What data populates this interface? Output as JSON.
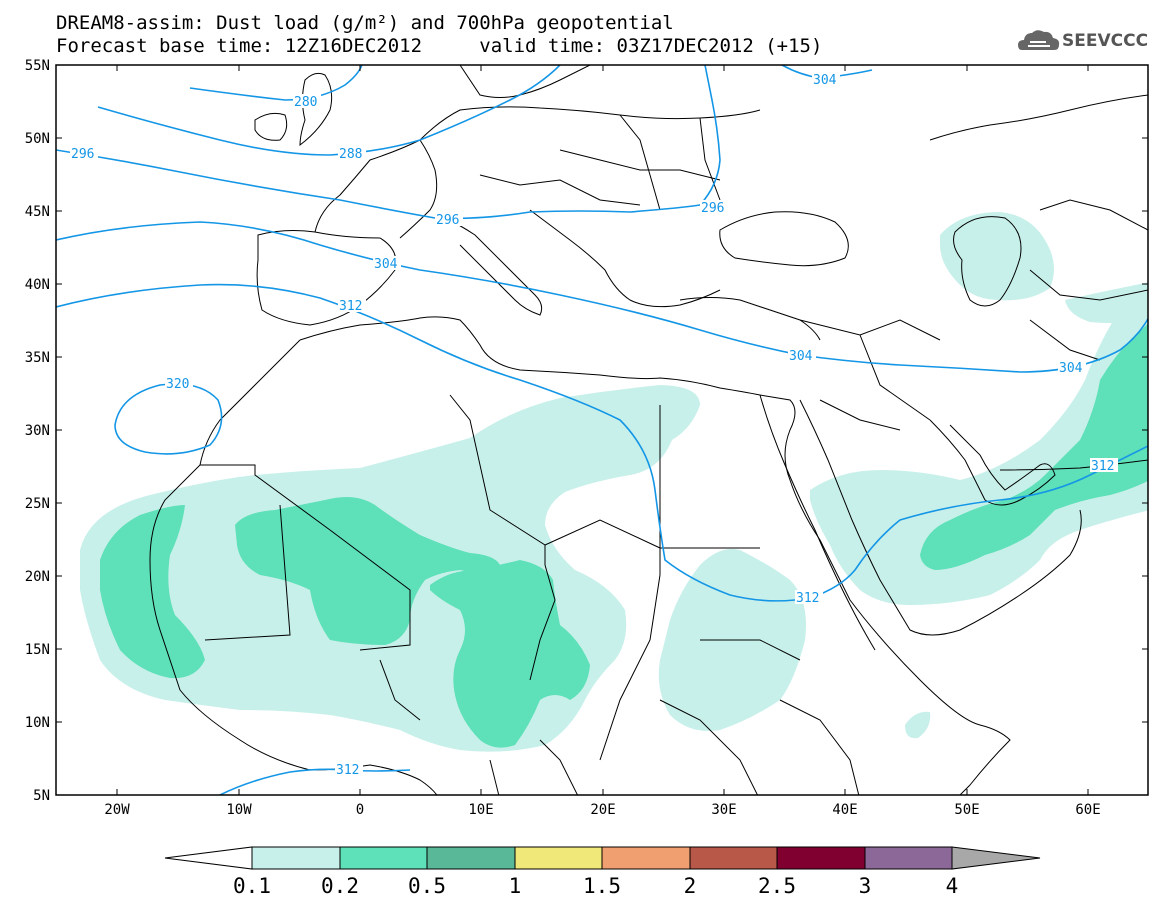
{
  "title": {
    "line1": "DREAM8-assim: Dust load (g/m²) and 700hPa geopotential",
    "line2_left": "Forecast base time: 12Z16DEC2012",
    "line2_right": "valid time: 03Z17DEC2012 (+15)"
  },
  "logo": {
    "text": "SEEVCCC",
    "icon": "cloud-logo-icon"
  },
  "axes": {
    "lon_labels": [
      "20W",
      "10W",
      "0",
      "10E",
      "20E",
      "30E",
      "40E",
      "50E",
      "60E"
    ],
    "lat_labels": [
      "55N",
      "50N",
      "45N",
      "40N",
      "35N",
      "30N",
      "25N",
      "20N",
      "15N",
      "10N",
      "5N"
    ]
  },
  "contour_labels": [
    "280",
    "288",
    "296",
    "296",
    "296",
    "304",
    "304",
    "304",
    "304",
    "312",
    "312",
    "312",
    "312",
    "320"
  ],
  "colorbar": {
    "ticks": [
      "0.1",
      "0.2",
      "0.5",
      "1",
      "1.5",
      "2",
      "2.5",
      "3",
      "4"
    ],
    "colors": [
      "#c8f0ea",
      "#5ee0b8",
      "#58b898",
      "#f0e878",
      "#f0a070",
      "#b85848",
      "#800030",
      "#8c6898",
      "#a8a8a8"
    ],
    "under_color": "#ffffff",
    "over_color": "#a8a8a8"
  },
  "colors": {
    "dust_light": "#c8f0ea",
    "dust_medium": "#5ee0b8",
    "contour": "#1496e6"
  }
}
